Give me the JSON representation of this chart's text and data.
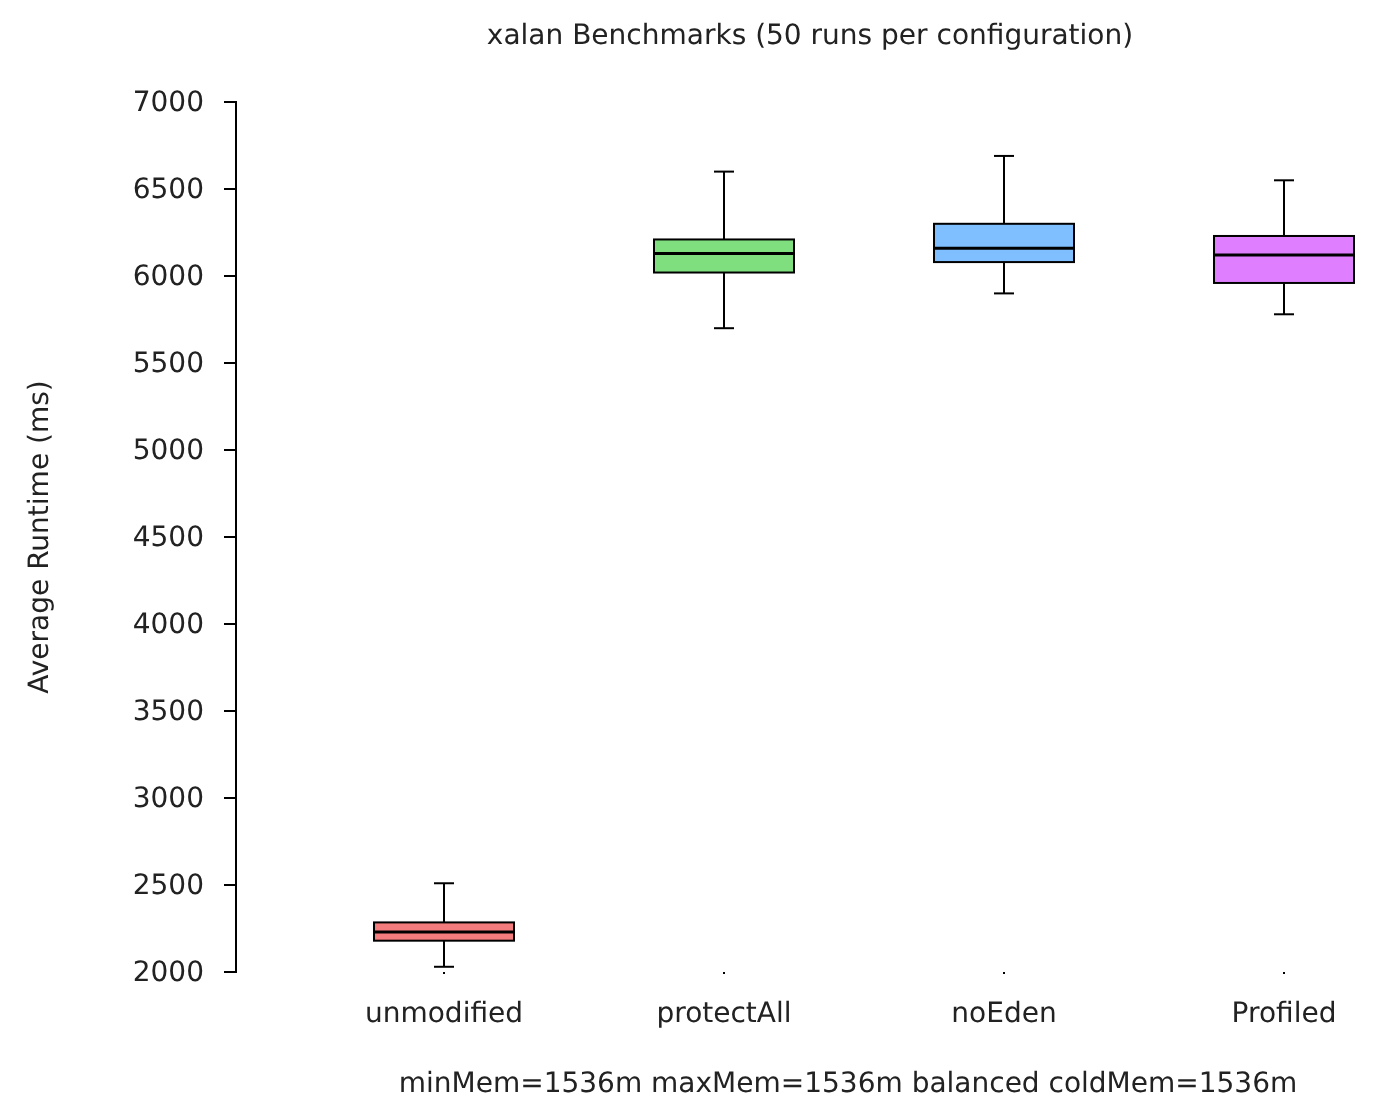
{
  "chart_data": {
    "type": "box",
    "title": "xalan Benchmarks (50 runs per configuration)",
    "xlabel": "minMem=1536m maxMem=1536m balanced coldMem=1536m",
    "ylabel": "Average Runtime (ms)",
    "categories": [
      "unmodified",
      "protectAll",
      "noEden",
      "Profiled"
    ],
    "colors": [
      "#f47c7c",
      "#7fdf7f",
      "#7fbfff",
      "#df7fff"
    ],
    "boxes": [
      {
        "low": 2030,
        "q1": 2180,
        "median": 2230,
        "q3": 2285,
        "high": 2510
      },
      {
        "low": 5700,
        "q1": 6020,
        "median": 6130,
        "q3": 6210,
        "high": 6600
      },
      {
        "low": 5900,
        "q1": 6080,
        "median": 6160,
        "q3": 6300,
        "high": 6690
      },
      {
        "low": 5780,
        "q1": 5960,
        "median": 6120,
        "q3": 6230,
        "high": 6550
      }
    ],
    "ylim": [
      2000,
      7000
    ],
    "yticks": [
      2000,
      2500,
      3000,
      3500,
      4000,
      4500,
      5000,
      5500,
      6000,
      6500,
      7000
    ],
    "grid": false
  }
}
